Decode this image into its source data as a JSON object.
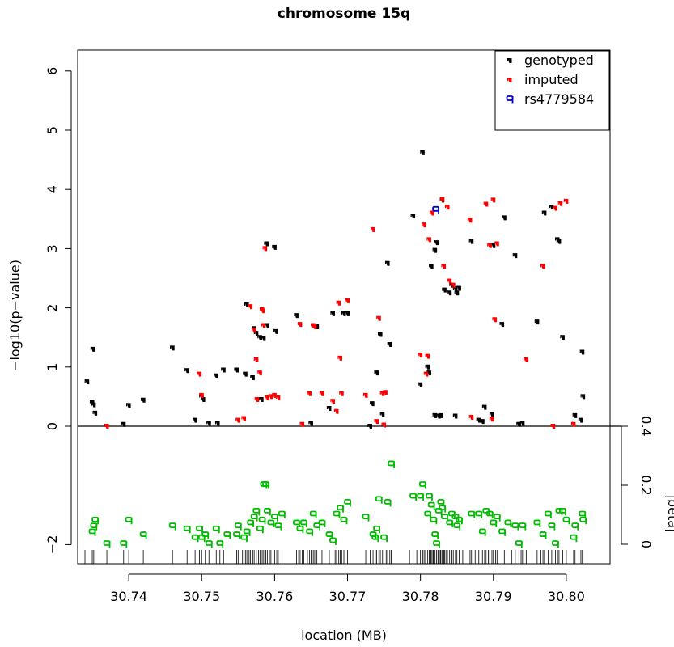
{
  "chart_data": {
    "type": "scatter",
    "title": "chromosome 15q",
    "xlabel": "location (MB)",
    "ylabel": "−log10(p−value)",
    "ylabel_right": "|beta|",
    "xlim": [
      30.733,
      30.806
    ],
    "ylim": [
      -2,
      6
    ],
    "right_lim": [
      0,
      0.4
    ],
    "x_ticks": [
      "30.74",
      "30.75",
      "30.76",
      "30.77",
      "30.78",
      "30.79",
      "30.80"
    ],
    "y_ticks": [
      "−2",
      "0",
      "1",
      "2",
      "3",
      "4",
      "5",
      "6"
    ],
    "right_ticks": [
      "0",
      "0.2",
      "0.4"
    ],
    "legend": {
      "position": "top-right",
      "entries": [
        {
          "name": "genotyped",
          "color": "#000000",
          "symbol": "half-filled-marker"
        },
        {
          "name": "imputed",
          "color": "#ff0000",
          "symbol": "half-filled-marker"
        },
        {
          "name": "rs4779584",
          "color": "#0000cc",
          "symbol": "q"
        }
      ]
    },
    "colors": {
      "genotyped": "#000000",
      "imputed": "#ff0000",
      "highlight": "#0000cc",
      "beta": "#00bb00"
    },
    "series": [
      {
        "name": "genotyped",
        "points": [
          [
            30.7343,
            0.75
          ],
          [
            30.7351,
            1.3
          ],
          [
            30.735,
            0.4
          ],
          [
            30.7352,
            0.36
          ],
          [
            30.7354,
            0.22
          ],
          [
            30.7393,
            0.03
          ],
          [
            30.74,
            0.35
          ],
          [
            30.742,
            0.44
          ],
          [
            30.746,
            1.32
          ],
          [
            30.748,
            0.94
          ],
          [
            30.7491,
            0.1
          ],
          [
            30.75,
            0.5
          ],
          [
            30.7502,
            0.45
          ],
          [
            30.751,
            0.05
          ],
          [
            30.752,
            0.85
          ],
          [
            30.7522,
            0.05
          ],
          [
            30.753,
            0.95
          ],
          [
            30.7548,
            0.95
          ],
          [
            30.756,
            0.88
          ],
          [
            30.757,
            0.82
          ],
          [
            30.7562,
            2.05
          ],
          [
            30.7572,
            1.65
          ],
          [
            30.7575,
            1.57
          ],
          [
            30.758,
            1.5
          ],
          [
            30.7585,
            1.48
          ],
          [
            30.7589,
            3.08
          ],
          [
            30.759,
            1.7
          ],
          [
            30.76,
            3.02
          ],
          [
            30.7602,
            1.6
          ],
          [
            30.7582,
            0.45
          ],
          [
            30.763,
            1.87
          ],
          [
            30.765,
            0.05
          ],
          [
            30.7658,
            1.68
          ],
          [
            30.7675,
            0.3
          ],
          [
            30.768,
            1.9
          ],
          [
            30.7695,
            1.9
          ],
          [
            30.77,
            1.9
          ],
          [
            30.7731,
            0.0
          ],
          [
            30.7734,
            0.38
          ],
          [
            30.774,
            0.9
          ],
          [
            30.7745,
            1.55
          ],
          [
            30.7748,
            0.2
          ],
          [
            30.7755,
            2.75
          ],
          [
            30.7758,
            1.38
          ],
          [
            30.779,
            3.55
          ],
          [
            30.78,
            0.7
          ],
          [
            30.7803,
            4.62
          ],
          [
            30.781,
            1.0
          ],
          [
            30.7812,
            0.9
          ],
          [
            30.7815,
            2.7
          ],
          [
            30.782,
            2.97
          ],
          [
            30.7822,
            3.1
          ],
          [
            30.782,
            0.18
          ],
          [
            30.7825,
            0.17
          ],
          [
            30.7828,
            0.18
          ],
          [
            30.783,
            3.82
          ],
          [
            30.7833,
            2.3
          ],
          [
            30.784,
            2.25
          ],
          [
            30.7843,
            2.38
          ],
          [
            30.7848,
            2.32
          ],
          [
            30.785,
            2.25
          ],
          [
            30.7853,
            2.33
          ],
          [
            30.7848,
            0.17
          ],
          [
            30.787,
            3.12
          ],
          [
            30.788,
            0.1
          ],
          [
            30.7885,
            0.08
          ],
          [
            30.7888,
            0.32
          ],
          [
            30.79,
            3.05
          ],
          [
            30.7898,
            0.2
          ],
          [
            30.7912,
            1.72
          ],
          [
            30.7915,
            3.52
          ],
          [
            30.793,
            2.88
          ],
          [
            30.7935,
            0.03
          ],
          [
            30.794,
            0.05
          ],
          [
            30.796,
            1.76
          ],
          [
            30.797,
            3.6
          ],
          [
            30.798,
            3.7
          ],
          [
            30.7988,
            3.15
          ],
          [
            30.799,
            3.12
          ],
          [
            30.7995,
            1.5
          ],
          [
            30.8012,
            0.18
          ],
          [
            30.8022,
            1.25
          ],
          [
            30.8023,
            0.5
          ],
          [
            30.802,
            0.1
          ]
        ]
      },
      {
        "name": "imputed",
        "points": [
          [
            30.737,
            0.0
          ],
          [
            30.7497,
            0.88
          ],
          [
            30.75,
            0.52
          ],
          [
            30.755,
            0.1
          ],
          [
            30.7558,
            0.13
          ],
          [
            30.7567,
            2.02
          ],
          [
            30.7572,
            1.62
          ],
          [
            30.7575,
            1.12
          ],
          [
            30.7576,
            0.45
          ],
          [
            30.758,
            0.9
          ],
          [
            30.7583,
            1.97
          ],
          [
            30.7584,
            1.95
          ],
          [
            30.7585,
            1.7
          ],
          [
            30.7587,
            3.0
          ],
          [
            30.759,
            0.48
          ],
          [
            30.7595,
            0.5
          ],
          [
            30.76,
            0.52
          ],
          [
            30.7605,
            0.48
          ],
          [
            30.7635,
            1.72
          ],
          [
            30.7638,
            0.03
          ],
          [
            30.7648,
            0.55
          ],
          [
            30.7653,
            1.7
          ],
          [
            30.7655,
            1.68
          ],
          [
            30.7665,
            0.55
          ],
          [
            30.768,
            0.42
          ],
          [
            30.7685,
            0.25
          ],
          [
            30.7688,
            2.08
          ],
          [
            30.769,
            1.15
          ],
          [
            30.7692,
            0.55
          ],
          [
            30.77,
            2.12
          ],
          [
            30.7725,
            0.52
          ],
          [
            30.7735,
            3.32
          ],
          [
            30.774,
            0.08
          ],
          [
            30.7743,
            1.82
          ],
          [
            30.7748,
            0.55
          ],
          [
            30.7752,
            0.57
          ],
          [
            30.775,
            0.02
          ],
          [
            30.78,
            1.2
          ],
          [
            30.7805,
            3.4
          ],
          [
            30.781,
            1.18
          ],
          [
            30.7808,
            0.88
          ],
          [
            30.7812,
            3.15
          ],
          [
            30.7816,
            3.6
          ],
          [
            30.783,
            3.83
          ],
          [
            30.7832,
            2.7
          ],
          [
            30.7837,
            3.7
          ],
          [
            30.784,
            2.45
          ],
          [
            30.7845,
            2.38
          ],
          [
            30.7868,
            3.48
          ],
          [
            30.787,
            0.15
          ],
          [
            30.789,
            3.75
          ],
          [
            30.7895,
            3.05
          ],
          [
            30.7898,
            0.12
          ],
          [
            30.79,
            3.82
          ],
          [
            30.7905,
            3.08
          ],
          [
            30.7902,
            1.8
          ],
          [
            30.7945,
            1.12
          ],
          [
            30.7968,
            2.7
          ],
          [
            30.7985,
            3.68
          ],
          [
            30.7992,
            3.76
          ],
          [
            30.8,
            3.8
          ],
          [
            30.7982,
            0.0
          ],
          [
            30.801,
            0.03
          ]
        ]
      },
      {
        "name": "rs4779584",
        "points": [
          [
            30.7821,
            3.65
          ]
        ]
      },
      {
        "name": "|beta|",
        "points": [
          [
            30.735,
            0.04
          ],
          [
            30.7352,
            0.06
          ],
          [
            30.7354,
            0.08
          ],
          [
            30.737,
            0.0
          ],
          [
            30.7393,
            0.0
          ],
          [
            30.74,
            0.08
          ],
          [
            30.742,
            0.03
          ],
          [
            30.746,
            0.06
          ],
          [
            30.748,
            0.05
          ],
          [
            30.7491,
            0.02
          ],
          [
            30.7497,
            0.05
          ],
          [
            30.75,
            0.02
          ],
          [
            30.7505,
            0.03
          ],
          [
            30.751,
            0.0
          ],
          [
            30.752,
            0.05
          ],
          [
            30.7525,
            0.0
          ],
          [
            30.7535,
            0.03
          ],
          [
            30.7548,
            0.03
          ],
          [
            30.755,
            0.06
          ],
          [
            30.7558,
            0.02
          ],
          [
            30.7562,
            0.04
          ],
          [
            30.7567,
            0.07
          ],
          [
            30.7572,
            0.09
          ],
          [
            30.7575,
            0.11
          ],
          [
            30.758,
            0.05
          ],
          [
            30.7583,
            0.08
          ],
          [
            30.7585,
            0.2
          ],
          [
            30.7588,
            0.2
          ],
          [
            30.759,
            0.11
          ],
          [
            30.7595,
            0.07
          ],
          [
            30.76,
            0.09
          ],
          [
            30.7605,
            0.06
          ],
          [
            30.761,
            0.1
          ],
          [
            30.763,
            0.07
          ],
          [
            30.7635,
            0.05
          ],
          [
            30.764,
            0.07
          ],
          [
            30.7648,
            0.04
          ],
          [
            30.7653,
            0.1
          ],
          [
            30.7658,
            0.06
          ],
          [
            30.7665,
            0.07
          ],
          [
            30.7675,
            0.03
          ],
          [
            30.768,
            0.01
          ],
          [
            30.7685,
            0.1
          ],
          [
            30.769,
            0.12
          ],
          [
            30.7695,
            0.08
          ],
          [
            30.77,
            0.14
          ],
          [
            30.7725,
            0.09
          ],
          [
            30.7735,
            0.03
          ],
          [
            30.7738,
            0.02
          ],
          [
            30.774,
            0.05
          ],
          [
            30.7743,
            0.15
          ],
          [
            30.775,
            0.02
          ],
          [
            30.7755,
            0.14
          ],
          [
            30.776,
            0.27
          ],
          [
            30.779,
            0.16
          ],
          [
            30.78,
            0.16
          ],
          [
            30.7803,
            0.2
          ],
          [
            30.781,
            0.1
          ],
          [
            30.7812,
            0.16
          ],
          [
            30.7815,
            0.13
          ],
          [
            30.7818,
            0.08
          ],
          [
            30.782,
            0.03
          ],
          [
            30.7822,
            0.0
          ],
          [
            30.7825,
            0.11
          ],
          [
            30.7828,
            0.14
          ],
          [
            30.783,
            0.12
          ],
          [
            30.7833,
            0.09
          ],
          [
            30.784,
            0.07
          ],
          [
            30.7843,
            0.1
          ],
          [
            30.7848,
            0.09
          ],
          [
            30.785,
            0.06
          ],
          [
            30.7853,
            0.08
          ],
          [
            30.787,
            0.1
          ],
          [
            30.788,
            0.1
          ],
          [
            30.7885,
            0.04
          ],
          [
            30.789,
            0.11
          ],
          [
            30.7895,
            0.1
          ],
          [
            30.79,
            0.07
          ],
          [
            30.7905,
            0.09
          ],
          [
            30.7912,
            0.04
          ],
          [
            30.792,
            0.07
          ],
          [
            30.793,
            0.06
          ],
          [
            30.7935,
            0.0
          ],
          [
            30.794,
            0.06
          ],
          [
            30.796,
            0.07
          ],
          [
            30.7968,
            0.03
          ],
          [
            30.7975,
            0.1
          ],
          [
            30.798,
            0.06
          ],
          [
            30.7985,
            0.0
          ],
          [
            30.799,
            0.11
          ],
          [
            30.7995,
            0.11
          ],
          [
            30.8,
            0.08
          ],
          [
            30.801,
            0.02
          ],
          [
            30.8012,
            0.06
          ],
          [
            30.8022,
            0.1
          ],
          [
            30.8023,
            0.08
          ]
        ]
      }
    ],
    "rug": [
      30.734,
      30.735,
      30.7352,
      30.7354,
      30.737,
      30.7393,
      30.74,
      30.742,
      30.746,
      30.748,
      30.7491,
      30.7497,
      30.75,
      30.7505,
      30.751,
      30.752,
      30.7525,
      30.753,
      30.7548,
      30.755,
      30.7556,
      30.756,
      30.7562,
      30.7565,
      30.7567,
      30.757,
      30.7572,
      30.7575,
      30.7578,
      30.758,
      30.7583,
      30.7585,
      30.7588,
      30.759,
      30.7593,
      30.7595,
      30.7598,
      30.76,
      30.7603,
      30.7605,
      30.761,
      30.763,
      30.7633,
      30.7635,
      30.7638,
      30.764,
      30.7645,
      30.7648,
      30.765,
      30.7653,
      30.7655,
      30.7658,
      30.7665,
      30.7675,
      30.768,
      30.7683,
      30.7685,
      30.7688,
      30.769,
      30.7692,
      30.7695,
      30.77,
      30.7725,
      30.7731,
      30.7735,
      30.7738,
      30.774,
      30.7743,
      30.7745,
      30.7748,
      30.775,
      30.7753,
      30.7755,
      30.7758,
      30.776,
      30.7785,
      30.779,
      30.7795,
      30.78,
      30.7802,
      30.7803,
      30.7805,
      30.7807,
      30.781,
      30.7812,
      30.7814,
      30.7815,
      30.7817,
      30.7818,
      30.782,
      30.7822,
      30.7824,
      30.7825,
      30.7827,
      30.7828,
      30.783,
      30.7832,
      30.7833,
      30.7835,
      30.7837,
      30.784,
      30.7843,
      30.7845,
      30.7848,
      30.785,
      30.7853,
      30.7858,
      30.7868,
      30.787,
      30.7875,
      30.788,
      30.7883,
      30.7885,
      30.7888,
      30.789,
      30.7893,
      30.7895,
      30.7898,
      30.79,
      30.7903,
      30.7905,
      30.7912,
      30.7915,
      30.7925,
      30.793,
      30.7935,
      30.7938,
      30.794,
      30.7945,
      30.796,
      30.7965,
      30.7968,
      30.797,
      30.7975,
      30.798,
      30.7985,
      30.7988,
      30.799,
      30.7995,
      30.8,
      30.801,
      30.8012,
      30.802,
      30.8022,
      30.8023
    ]
  }
}
